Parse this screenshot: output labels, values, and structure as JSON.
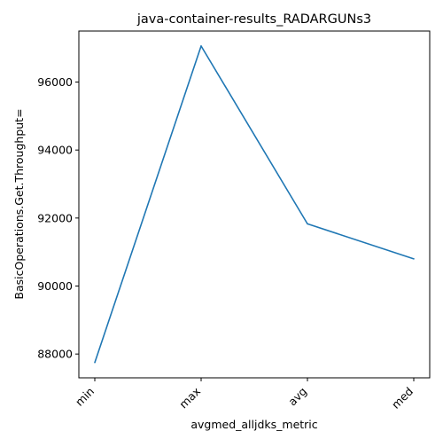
{
  "chart_data": {
    "type": "line",
    "title": "java-container-results_RADARGUNs3",
    "xlabel": "avgmed_alljdks_metric",
    "ylabel": "BasicOperations.Get.Throughput=",
    "categories": [
      "min",
      "max",
      "avg",
      "med"
    ],
    "series": [
      {
        "values": [
          87750,
          97060,
          91830,
          90800
        ],
        "color": "#1f77b4"
      }
    ],
    "ylim": [
      87300,
      97500
    ],
    "yticks": [
      88000,
      90000,
      92000,
      94000,
      96000
    ],
    "ytick_labels": [
      "88000",
      "90000",
      "92000",
      "94000",
      "96000"
    ],
    "grid": false,
    "legend": "none"
  }
}
